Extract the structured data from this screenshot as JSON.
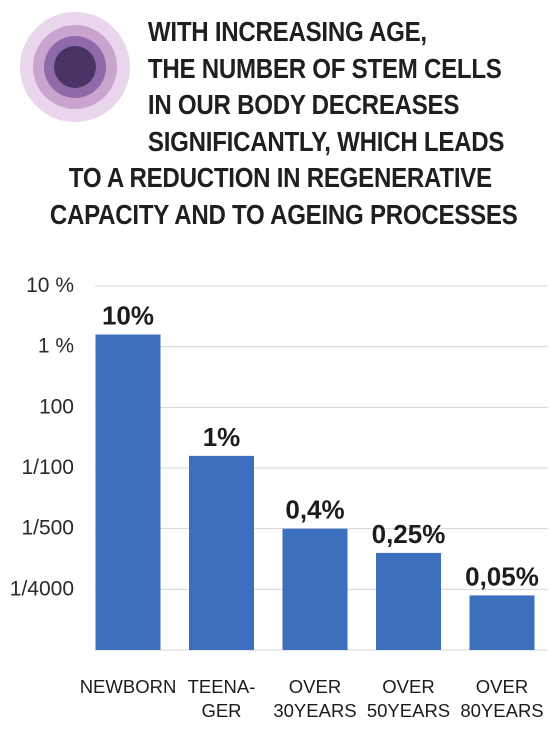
{
  "header": {
    "title_lines": [
      "WITH INCREASING AGE,",
      "THE NUMBER OF STEM CELLS",
      "IN OUR BODY DECREASES",
      "SIGNIFICANTLY, WHICH LEADS",
      "TO A REDUCTION IN REGENERATIVE",
      "CAPACITY AND TO AGEING PROCESSES"
    ],
    "logo_icon": "stem-cell-icon",
    "logo_colors": [
      "#e9d6ec",
      "#c9a4cf",
      "#8f6aa8",
      "#4a3466"
    ]
  },
  "chart_data": {
    "type": "bar",
    "categories": [
      [
        "NEWBORN"
      ],
      [
        "TEENA-",
        "GER"
      ],
      [
        "OVER",
        "30YEARS"
      ],
      [
        "OVER",
        "50YEARS"
      ],
      [
        "OVER",
        "80YEARS"
      ]
    ],
    "value_labels": [
      "10%",
      "1%",
      "0,4%",
      "0,25%",
      "0,05%"
    ],
    "values": [
      4.2,
      2.2,
      1.0,
      0.6,
      -0.1
    ],
    "y_tick_labels": [
      "10 %",
      "1 %",
      "100",
      "1/100",
      "1/500",
      "1/4000"
    ],
    "ylim": [
      -1,
      5
    ],
    "grid": true,
    "bar_color": "#3d6fbf"
  }
}
